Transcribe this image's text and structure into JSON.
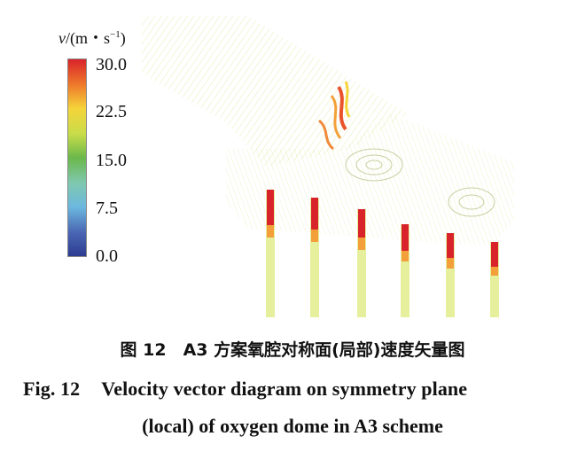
{
  "colorbar": {
    "title_var": "v",
    "title_units_prefix": "/(m・s",
    "title_exp": "−1",
    "title_units_suffix": ")",
    "ticks": [
      "30.0",
      "22.5",
      "15.0",
      "7.5",
      "0.0"
    ],
    "colors": [
      "#d9232a",
      "#ef7a2b",
      "#f5d43a",
      "#c8dc4a",
      "#6bb84b",
      "#7fc8b0",
      "#6cb8df",
      "#4a66b3",
      "#2d3c92"
    ]
  },
  "caption": {
    "cn": "图 12　A3 方案氧腔对称面(局部)速度矢量图",
    "en_fig": "Fig. 12",
    "en_line1": "Velocity vector diagram on symmetry plane",
    "en_line2": "(local) of oxygen dome in A3 scheme"
  }
}
